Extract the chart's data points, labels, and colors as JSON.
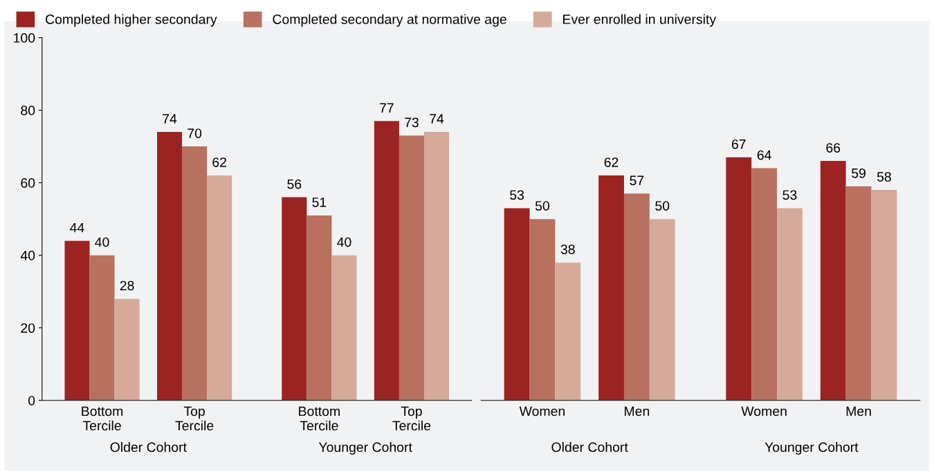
{
  "chart_data": [
    {
      "type": "bar",
      "categories": [
        "Bottom Tercile",
        "Top Tercile",
        "Bottom Tercile",
        "Top Tercile"
      ],
      "series": [
        {
          "name": "Completed higher secondary",
          "color": "#9b2423",
          "values": [
            44,
            74,
            56,
            77
          ]
        },
        {
          "name": "Completed secondary at normative age",
          "color": "#b8705f",
          "values": [
            40,
            70,
            51,
            73
          ]
        },
        {
          "name": "Ever enrolled in university",
          "color": "#d6aa9a",
          "values": [
            28,
            62,
            40,
            74
          ]
        }
      ],
      "annotations": [
        "Older Cohort",
        "Younger Cohort"
      ],
      "ylim": [
        0,
        100
      ],
      "yticks": [
        0,
        20,
        40,
        60,
        80,
        100
      ],
      "data_labels": true,
      "grid": false,
      "legend": "top"
    },
    {
      "type": "bar",
      "categories": [
        "Women",
        "Men",
        "Women",
        "Men"
      ],
      "series": [
        {
          "color": "#9b2423",
          "values": [
            53,
            62,
            67,
            66
          ]
        },
        {
          "color": "#b8705f",
          "values": [
            50,
            57,
            64,
            59
          ]
        },
        {
          "color": "#d6aa9a",
          "values": [
            38,
            50,
            53,
            58
          ]
        }
      ],
      "annotations": [
        "Older Cohort",
        "Younger Cohort"
      ],
      "ylim": [
        0,
        100
      ],
      "tick_labels": "x",
      "data_labels": true,
      "grid": false
    }
  ]
}
